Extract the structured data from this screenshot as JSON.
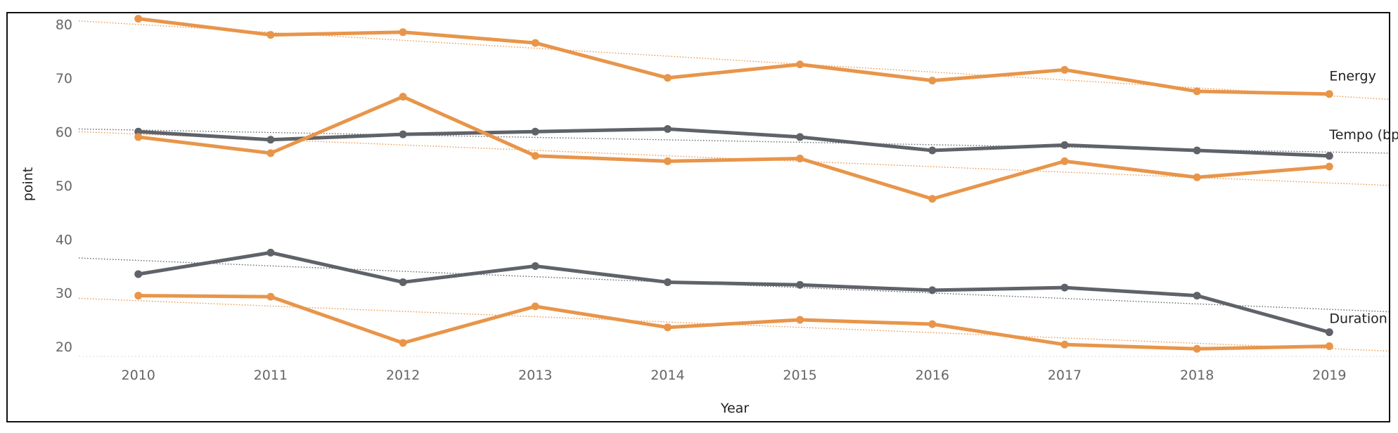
{
  "chart_data": {
    "type": "line",
    "xlabel": "Year",
    "ylabel": "point",
    "x": [
      2010,
      2011,
      2012,
      2013,
      2014,
      2015,
      2016,
      2017,
      2018,
      2019
    ],
    "xlim": [
      2009.55,
      2019.45
    ],
    "ylim": [
      18.2,
      82
    ],
    "yticks": [
      20,
      30,
      40,
      50,
      60,
      70,
      80
    ],
    "grid": false,
    "legend": "none",
    "colors": {
      "orange": "#e8954a",
      "gray": "#5f6369"
    },
    "series": [
      {
        "name": "Energy",
        "color": "orange",
        "labeled": true,
        "values": [
          81,
          78,
          78.5,
          76.5,
          70,
          72.5,
          69.5,
          71.5,
          67.5,
          67
        ],
        "trend": [
          80.6,
          66
        ]
      },
      {
        "name": "Tempo (bpm)",
        "color": "gray",
        "labeled": true,
        "values": [
          60,
          58.5,
          59.5,
          60,
          60.5,
          59,
          56.5,
          57.5,
          56.5,
          55.5
        ],
        "trend": [
          60.5,
          56
        ]
      },
      {
        "name": "",
        "color": "orange",
        "labeled": false,
        "values": [
          59,
          56,
          66.5,
          55.5,
          54.5,
          55,
          47.5,
          54.5,
          51.5,
          53.5
        ],
        "trend": [
          60,
          50
        ]
      },
      {
        "name": "",
        "color": "gray",
        "labeled": false,
        "values": [
          33.5,
          37.5,
          32,
          35,
          32,
          31.5,
          30.5,
          31,
          29.5,
          22.7
        ],
        "trend": [
          36.5,
          26.5
        ]
      },
      {
        "name": "Duration",
        "color": "orange",
        "labeled": false,
        "values": [
          29.5,
          29.3,
          20.7,
          27.5,
          23.6,
          25,
          24.2,
          20.4,
          19.6,
          20.1
        ],
        "trend": [
          29,
          19.2
        ]
      }
    ],
    "series_labels": [
      {
        "text": "Energy",
        "x": 2019,
        "y": 69.5
      },
      {
        "text": "Tempo (bpm)",
        "x": 2019,
        "y": 58.6
      },
      {
        "text": "Duration",
        "x": 2019,
        "y": 24.4
      }
    ]
  }
}
